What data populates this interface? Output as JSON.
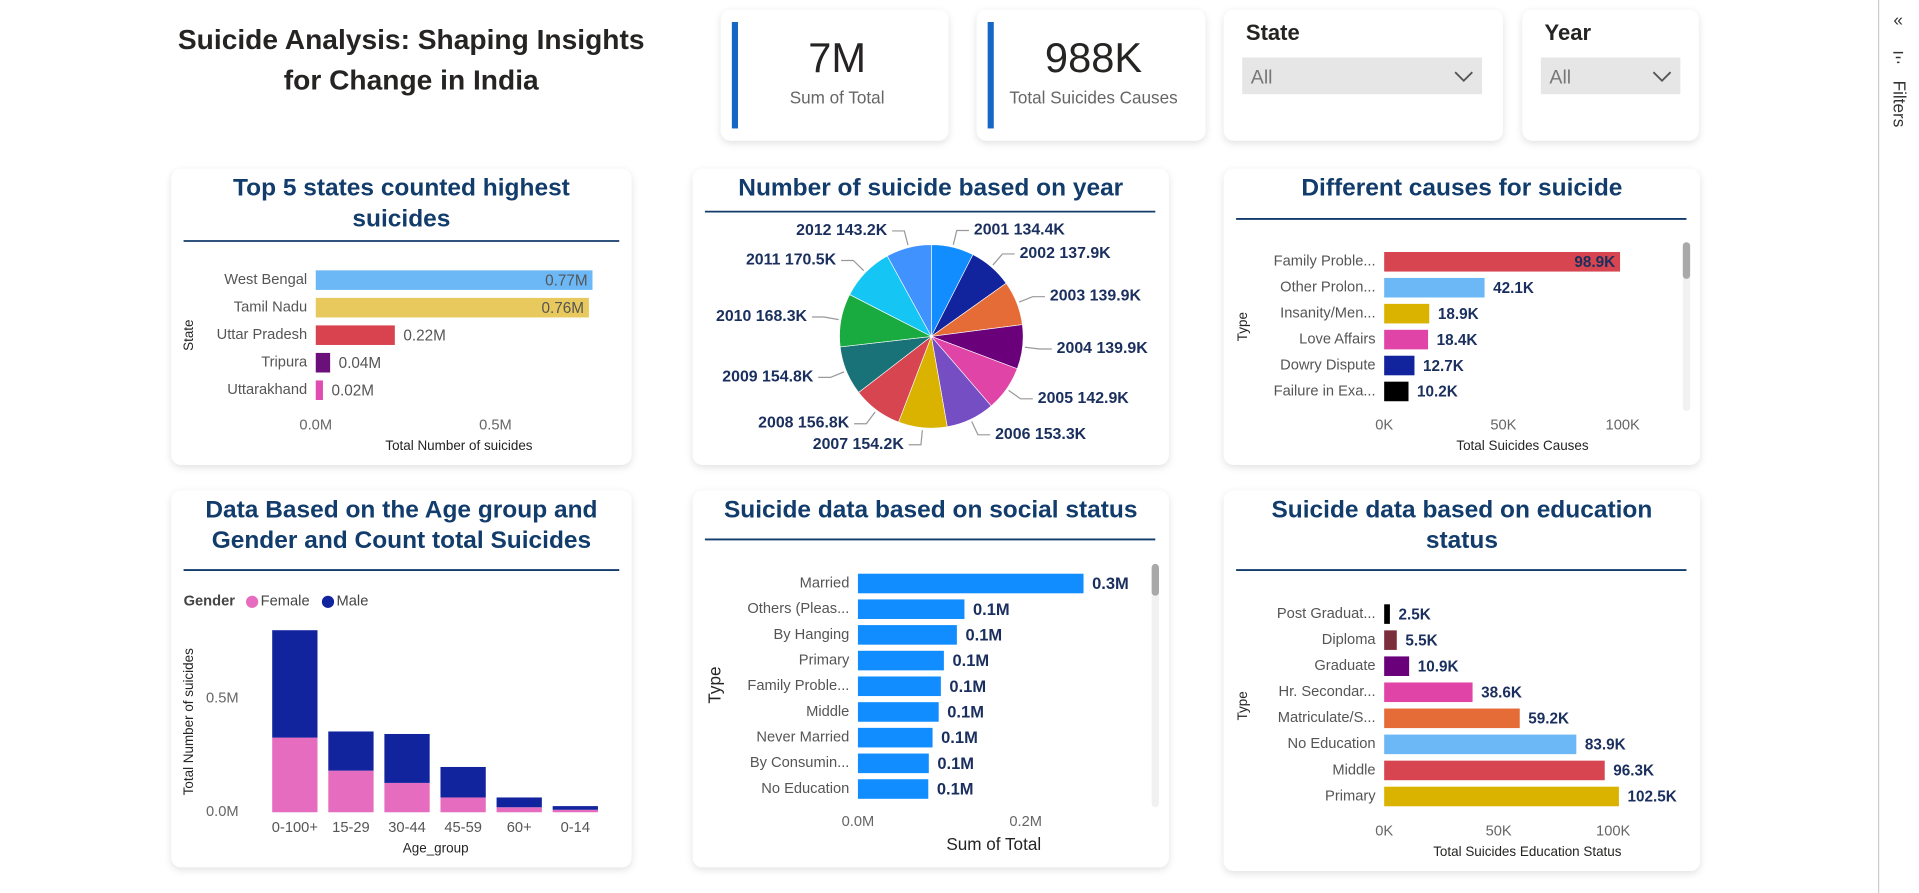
{
  "header": {
    "title": "Suicide Analysis: Shaping Insights for Change in India"
  },
  "kpis": [
    {
      "value": "7M",
      "label": "Sum of Total"
    },
    {
      "value": "988K",
      "label": "Total Suicides Causes"
    }
  ],
  "slicers": [
    {
      "title": "State",
      "value": "All"
    },
    {
      "title": "Year",
      "value": "All"
    }
  ],
  "pane": {
    "collapse": "«",
    "label": "Filters"
  },
  "chart_data": [
    {
      "type": "hbar",
      "title": "Top 5 states counted highest suicides",
      "x_label": "Total Number of suicides",
      "y_label": "State",
      "categories": [
        "West Bengal",
        "Tamil Nadu",
        "Uttar Pradesh",
        "Tripura",
        "Uttarakhand"
      ],
      "values": [
        770000,
        760000,
        220000,
        40000,
        20000
      ],
      "value_labels": [
        "0.77M",
        "0.76M",
        "0.22M",
        "0.04M",
        "0.02M"
      ],
      "colors": [
        "#6cb8f6",
        "#e8c95d",
        "#d9434f",
        "#6b0f7a",
        "#e04cb1"
      ],
      "xlim": [
        0,
        790000
      ],
      "xticks": [
        {
          "value": 0,
          "label": "0.0M"
        },
        {
          "value": 500000,
          "label": "0.5M"
        }
      ]
    },
    {
      "type": "pie",
      "title": "Number of suicide based on year",
      "categories": [
        "2001",
        "2002",
        "2003",
        "2004",
        "2005",
        "2006",
        "2007",
        "2008",
        "2009",
        "2010",
        "2011",
        "2012"
      ],
      "values": [
        134400,
        137900,
        139900,
        139900,
        142900,
        153300,
        154200,
        156800,
        154800,
        168300,
        170500,
        143200
      ],
      "value_labels": [
        "134.4K",
        "137.9K",
        "139.9K",
        "139.9K",
        "142.9K",
        "153.3K",
        "154.2K",
        "156.8K",
        "154.8K",
        "168.3K",
        "170.5K",
        "143.2K"
      ],
      "colors": [
        "#118dff",
        "#12239e",
        "#e66c37",
        "#6b007b",
        "#e044a7",
        "#744ec2",
        "#d9b300",
        "#d64550",
        "#197278",
        "#1aab40",
        "#15c6f4",
        "#4092ff"
      ]
    },
    {
      "type": "hbar",
      "title": "Different causes for suicide",
      "x_label": "Total Suicides Causes",
      "y_label": "Type",
      "categories": [
        "Family Proble...",
        "Other Prolon...",
        "Insanity/Men...",
        "Love Affairs",
        "Dowry Dispute",
        "Failure in Exa..."
      ],
      "values": [
        98900,
        42100,
        18900,
        18400,
        12700,
        10200
      ],
      "value_labels": [
        "98.9K",
        "42.1K",
        "18.9K",
        "18.4K",
        "12.7K",
        "10.2K"
      ],
      "colors": [
        "#d64550",
        "#6cb8f6",
        "#d9b300",
        "#e044a7",
        "#12239e",
        "#000000"
      ],
      "xlim": [
        0,
        117000
      ],
      "xticks": [
        {
          "value": 0,
          "label": "0K"
        },
        {
          "value": 50000,
          "label": "50K"
        },
        {
          "value": 100000,
          "label": "100K"
        }
      ]
    },
    {
      "type": "stacked_bar",
      "title": "Data Based on the Age group and Gender and Count total Suicides",
      "x_label": "Age_group",
      "y_label": "Total Number of suicides",
      "legend_title": "Gender",
      "categories": [
        "0-100+",
        "15-29",
        "30-44",
        "45-59",
        "60+",
        "0-14"
      ],
      "series": [
        {
          "name": "Female",
          "color": "#e66cbf",
          "values": [
            328000,
            183000,
            129000,
            65000,
            22000,
            11000
          ]
        },
        {
          "name": "Male",
          "color": "#12239e",
          "values": [
            472000,
            172000,
            215000,
            134000,
            43000,
            16000
          ]
        }
      ],
      "ylim": [
        0,
        830000
      ],
      "yticks": [
        {
          "value": 0,
          "label": "0.0M"
        },
        {
          "value": 500000,
          "label": "0.5M"
        }
      ]
    },
    {
      "type": "hbar",
      "title": "Suicide data based on social status",
      "x_label": "Sum of Total",
      "y_label": "Type",
      "categories": [
        "Married",
        "Others (Pleas...",
        "By Hanging",
        "Primary",
        "Family Proble...",
        "Middle",
        "Never Married",
        "By Consumin...",
        "No Education"
      ],
      "values": [
        269000,
        127000,
        118000,
        102500,
        98900,
        96300,
        89000,
        84500,
        83900
      ],
      "value_labels": [
        "0.3M",
        "0.1M",
        "0.1M",
        "0.1M",
        "0.1M",
        "0.1M",
        "0.1M",
        "0.1M",
        "0.1M"
      ],
      "color": "#118dff",
      "xlim": [
        0,
        340000
      ],
      "xticks": [
        {
          "value": 0,
          "label": "0.0M"
        },
        {
          "value": 200000,
          "label": "0.2M"
        }
      ]
    },
    {
      "type": "hbar",
      "title": "Suicide data based on education status",
      "x_label": "Total Suicides Education Status",
      "y_label": "Type",
      "categories": [
        "Post Graduat...",
        "Diploma",
        "Graduate",
        "Hr. Secondar...",
        "Matriculate/S...",
        "No Education",
        "Middle",
        "Primary"
      ],
      "values": [
        2500,
        5500,
        10900,
        38600,
        59200,
        83900,
        96300,
        102500
      ],
      "value_labels": [
        "2.5K",
        "5.5K",
        "10.9K",
        "38.6K",
        "59.2K",
        "83.9K",
        "96.3K",
        "102.5K"
      ],
      "colors": [
        "#000000",
        "#7b2e3b",
        "#6b007b",
        "#e044a7",
        "#e66c37",
        "#6cb8f6",
        "#d64550",
        "#d9b300"
      ],
      "xlim": [
        0,
        132000
      ],
      "xticks": [
        {
          "value": 0,
          "label": "0K"
        },
        {
          "value": 50000,
          "label": "50K"
        },
        {
          "value": 100000,
          "label": "100K"
        }
      ]
    }
  ]
}
